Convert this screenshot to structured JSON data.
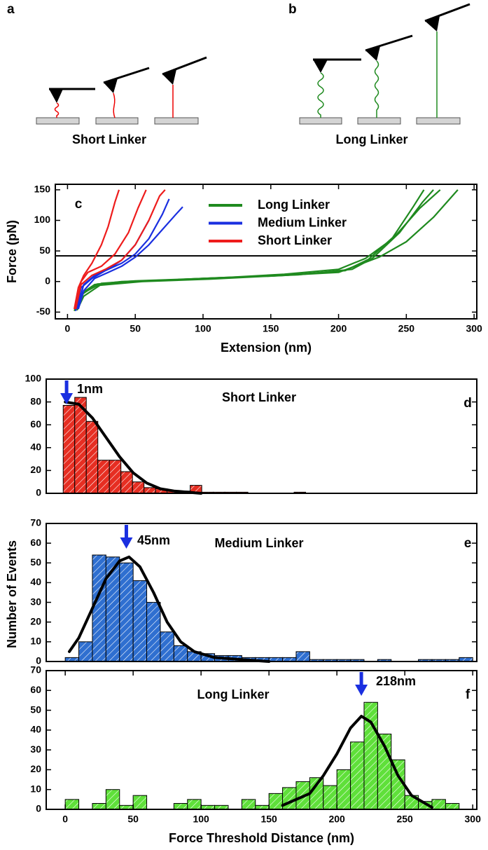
{
  "panels": [
    {
      "label": "a",
      "caption": "Short Linker"
    },
    {
      "label": "b",
      "caption": "Long Linker"
    }
  ],
  "chart_data": [
    {
      "type": "line",
      "panel_label": "c",
      "xlabel": "Extension (nm)",
      "ylabel": "Force (pN)",
      "xlim": [
        -9,
        302
      ],
      "ylim": [
        -61,
        159
      ],
      "xticks": [
        0,
        50,
        100,
        150,
        200,
        250,
        300
      ],
      "yticks": [
        -50,
        0,
        50,
        100,
        150
      ],
      "threshold": 42,
      "series": [
        {
          "name": "Long Linker",
          "color": "#1f8a1f",
          "curves": [
            {
              "x": [
                5,
                10,
                20,
                40,
                80,
                120,
                160,
                200,
                220,
                240,
                260,
                275
              ],
              "y": [
                -45,
                -20,
                -5,
                0,
                3,
                7,
                12,
                20,
                38,
                70,
                120,
                150
              ]
            },
            {
              "x": [
                6,
                12,
                25,
                50,
                100,
                150,
                200,
                230,
                250,
                270,
                288
              ],
              "y": [
                -45,
                -18,
                -3,
                1,
                5,
                9,
                15,
                40,
                65,
                105,
                150
              ]
            },
            {
              "x": [
                5,
                10,
                22,
                60,
                110,
                170,
                210,
                225,
                245,
                262,
                270
              ],
              "y": [
                -48,
                -22,
                -4,
                1,
                6,
                11,
                20,
                38,
                80,
                130,
                150
              ]
            },
            {
              "x": [
                7,
                12,
                24,
                55,
                105,
                160,
                205,
                222,
                240,
                255,
                263
              ],
              "y": [
                -47,
                -24,
                -6,
                0,
                4,
                10,
                18,
                36,
                72,
                122,
                150
              ]
            }
          ]
        },
        {
          "name": "Medium Linker",
          "color": "#1a2fe0",
          "curves": [
            {
              "x": [
                8,
                12,
                20,
                30,
                40,
                50,
                60,
                70,
                80,
                85
              ],
              "y": [
                -45,
                -15,
                5,
                15,
                25,
                40,
                60,
                85,
                110,
                122
              ]
            },
            {
              "x": [
                6,
                10,
                18,
                28,
                40,
                50,
                60,
                70,
                75
              ],
              "y": [
                -48,
                -10,
                5,
                18,
                30,
                45,
                70,
                110,
                135
              ]
            },
            {
              "x": [
                7,
                12,
                20,
                30,
                40,
                50,
                55,
                60
              ],
              "y": [
                -45,
                -5,
                10,
                20,
                35,
                60,
                80,
                100
              ]
            }
          ]
        },
        {
          "name": "Short Linker",
          "color": "#ee1c1c",
          "curves": [
            {
              "x": [
                5,
                8,
                12,
                18,
                25,
                30,
                35,
                38
              ],
              "y": [
                -45,
                -10,
                10,
                30,
                60,
                90,
                130,
                150
              ]
            },
            {
              "x": [
                6,
                10,
                15,
                25,
                35,
                45,
                52,
                58
              ],
              "y": [
                -45,
                0,
                15,
                25,
                45,
                80,
                120,
                150
              ]
            },
            {
              "x": [
                6,
                10,
                18,
                28,
                40,
                50,
                60,
                68,
                72
              ],
              "y": [
                -45,
                -5,
                10,
                20,
                35,
                60,
                100,
                140,
                150
              ]
            }
          ]
        }
      ]
    },
    {
      "type": "histogram",
      "panel_label": "d",
      "title": "Short Linker",
      "color": "#e62e22",
      "xlim": [
        -14,
        303
      ],
      "ylim": [
        0,
        100
      ],
      "yticks": [
        0,
        20,
        40,
        60,
        80,
        100
      ],
      "bins": [
        -1.5,
        7,
        15.5,
        24,
        32.5,
        41,
        49.5,
        58,
        66.5,
        75,
        83.5,
        92,
        100.5,
        109,
        117.5,
        126,
        134.5,
        143,
        151.5,
        160,
        168.5,
        177
      ],
      "counts": [
        77,
        84,
        63,
        29,
        29,
        19,
        10,
        5,
        4,
        2,
        2,
        7,
        1,
        1,
        1,
        1,
        0,
        0,
        0,
        0,
        1
      ],
      "fit": {
        "x": [
          0,
          10,
          20,
          30,
          40,
          50,
          60,
          70,
          80,
          90,
          100
        ],
        "y": [
          80,
          78,
          66,
          49,
          32,
          18,
          9,
          4,
          2,
          1,
          0
        ]
      },
      "annotation": {
        "label": "1nm",
        "x": 1
      }
    },
    {
      "type": "histogram",
      "panel_label": "e",
      "title": "Medium Linker",
      "color": "#2f6fd0",
      "ylabel": "Number of Events",
      "xlim": [
        -14,
        303
      ],
      "ylim": [
        0,
        70
      ],
      "yticks": [
        0,
        10,
        20,
        30,
        40,
        50,
        60,
        70
      ],
      "bins": [
        0,
        10,
        20,
        30,
        40,
        50,
        60,
        70,
        80,
        90,
        100,
        110,
        120,
        130,
        140,
        150,
        160,
        170,
        180,
        190,
        200,
        210,
        220,
        230,
        240,
        250,
        260,
        270,
        280,
        290,
        300
      ],
      "counts": [
        2,
        10,
        54,
        53,
        50,
        41,
        30,
        15,
        8,
        5,
        4,
        3,
        3,
        2,
        2,
        2,
        2,
        5,
        1,
        1,
        1,
        1,
        0,
        1,
        0,
        0,
        1,
        1,
        1,
        2
      ],
      "fit": {
        "x": [
          3,
          10,
          20,
          30,
          40,
          47,
          55,
          65,
          75,
          85,
          95,
          110,
          130,
          150
        ],
        "y": [
          5,
          12,
          27,
          42,
          51,
          53,
          48,
          35,
          20,
          10,
          5,
          2,
          1,
          0
        ]
      },
      "annotation": {
        "label": "45nm",
        "x": 45
      }
    },
    {
      "type": "histogram",
      "panel_label": "f",
      "title": "Long Linker",
      "color": "#5fe03a",
      "xlabel": "Force Threshold Distance (nm)",
      "xlim": [
        -14,
        303
      ],
      "ylim": [
        0,
        70
      ],
      "yticks": [
        0,
        10,
        20,
        30,
        40,
        50,
        60,
        70
      ],
      "xticks": [
        0,
        50,
        100,
        150,
        200,
        250,
        300
      ],
      "bins": [
        0,
        10,
        20,
        30,
        40,
        50,
        60,
        70,
        80,
        90,
        100,
        110,
        120,
        130,
        140,
        150,
        160,
        170,
        180,
        190,
        200,
        210,
        220,
        230,
        240,
        250,
        260,
        270,
        280,
        290,
        300
      ],
      "counts": [
        5,
        0,
        3,
        10,
        2,
        7,
        0,
        0,
        3,
        5,
        2,
        2,
        0,
        5,
        2,
        8,
        11,
        14,
        16,
        12,
        20,
        34,
        54,
        38,
        25,
        7,
        4,
        5,
        3,
        0
      ],
      "fit": {
        "x": [
          160,
          180,
          190,
          200,
          210,
          218,
          225,
          235,
          245,
          255,
          270
        ],
        "y": [
          2,
          8,
          17,
          28,
          41,
          47,
          44,
          32,
          17,
          7,
          1
        ]
      },
      "annotation": {
        "label": "218nm",
        "x": 218
      }
    }
  ]
}
